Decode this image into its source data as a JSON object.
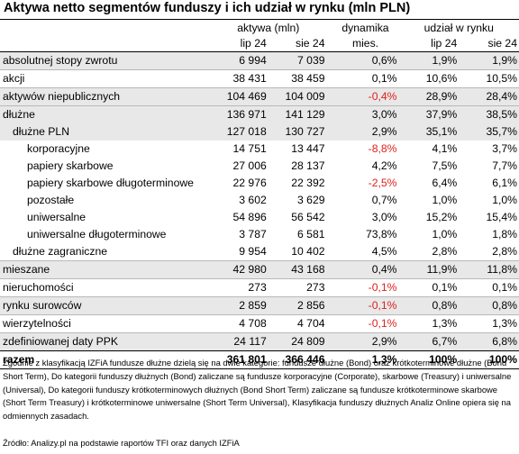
{
  "title": "Aktywa netto segmentów funduszy i ich udział w rynku (mln PLN)",
  "header": {
    "group_aktywa": "aktywa (mln)",
    "group_dyn": "dynamika",
    "group_udzial": "udział w rynku",
    "col_lip24": "lip 24",
    "col_sie24": "sie 24",
    "col_mies": "mies.",
    "col_lip24b": "lip 24",
    "col_sie24b": "sie 24"
  },
  "rows": [
    {
      "name": "absolutnej stopy zwrotu",
      "lip": "6 994",
      "sie": "7 039",
      "dyn": "0,6%",
      "u_lip": "1,9%",
      "u_sie": "1,9%"
    },
    {
      "name": "akcji",
      "lip": "38 431",
      "sie": "38 459",
      "dyn": "0,1%",
      "u_lip": "10,6%",
      "u_sie": "10,5%"
    },
    {
      "name": "aktywów niepublicznych",
      "lip": "104 469",
      "sie": "104 009",
      "dyn": "-0,4%",
      "u_lip": "28,9%",
      "u_sie": "28,4%"
    },
    {
      "name": "dłużne",
      "lip": "136 971",
      "sie": "141 129",
      "dyn": "3,0%",
      "u_lip": "37,9%",
      "u_sie": "38,5%"
    },
    {
      "name": "dłużne PLN",
      "lip": "127 018",
      "sie": "130 727",
      "dyn": "2,9%",
      "u_lip": "35,1%",
      "u_sie": "35,7%"
    },
    {
      "name": "korporacyjne",
      "lip": "14 751",
      "sie": "13 447",
      "dyn": "-8,8%",
      "u_lip": "4,1%",
      "u_sie": "3,7%"
    },
    {
      "name": "papiery skarbowe",
      "lip": "27 006",
      "sie": "28 137",
      "dyn": "4,2%",
      "u_lip": "7,5%",
      "u_sie": "7,7%"
    },
    {
      "name": "papiery skarbowe długoterminowe",
      "lip": "22 976",
      "sie": "22 392",
      "dyn": "-2,5%",
      "u_lip": "6,4%",
      "u_sie": "6,1%"
    },
    {
      "name": "pozostałe",
      "lip": "3 602",
      "sie": "3 629",
      "dyn": "0,7%",
      "u_lip": "1,0%",
      "u_sie": "1,0%"
    },
    {
      "name": "uniwersalne",
      "lip": "54 896",
      "sie": "56 542",
      "dyn": "3,0%",
      "u_lip": "15,2%",
      "u_sie": "15,4%"
    },
    {
      "name": "uniwersalne długoterminowe",
      "lip": "3 787",
      "sie": "6 581",
      "dyn": "73,8%",
      "u_lip": "1,0%",
      "u_sie": "1,8%"
    },
    {
      "name": "dłużne zagraniczne",
      "lip": "9 954",
      "sie": "10 402",
      "dyn": "4,5%",
      "u_lip": "2,8%",
      "u_sie": "2,8%"
    },
    {
      "name": "mieszane",
      "lip": "42 980",
      "sie": "43 168",
      "dyn": "0,4%",
      "u_lip": "11,9%",
      "u_sie": "11,8%"
    },
    {
      "name": "nieruchomości",
      "lip": "273",
      "sie": "273",
      "dyn": "-0,1%",
      "u_lip": "0,1%",
      "u_sie": "0,1%"
    },
    {
      "name": "rynku surowców",
      "lip": "2 859",
      "sie": "2 856",
      "dyn": "-0,1%",
      "u_lip": "0,8%",
      "u_sie": "0,8%"
    },
    {
      "name": "wierzytelności",
      "lip": "4 708",
      "sie": "4 704",
      "dyn": "-0,1%",
      "u_lip": "1,3%",
      "u_sie": "1,3%"
    },
    {
      "name": "zdefiniowanej daty PPK",
      "lip": "24 117",
      "sie": "24 809",
      "dyn": "2,9%",
      "u_lip": "6,7%",
      "u_sie": "6,8%"
    }
  ],
  "total": {
    "name": "razem",
    "lip": "361 801",
    "sie": "366 446",
    "dyn": "1,3%",
    "u_lip": "100%",
    "u_sie": "100%"
  },
  "notes": "Zgodnie z klasyfikacją IZFiA fundusze dłużne dzielą się na dwie kategorie: fundusze dłużne (Bond) oraz krótkoterminowe dłużne (Bond Short Term), Do kategorii funduszy dłużnych (Bond) zaliczane są fundusze korporacyjne (Corporate), skarbowe (Treasury) i uniwersalne (Universal), Do kategorii funduszy krótkoterminowych dłużnych (Bond Short Term) zaliczane są fundusze krótkoterminowe skarbowe (Short Term Treasury) i krótkoterminowe uniwersalne (Short Term Universal), Klasyfikacja funduszy dłużnych Analiz Online opiera się na odmiennych zasadach.",
  "source": "Źródło: Analizy.pl na podstawie raportów TFI oraz danych IZFiA",
  "colors": {
    "negative": "#e0201c",
    "shade": "#e8e8e8"
  }
}
